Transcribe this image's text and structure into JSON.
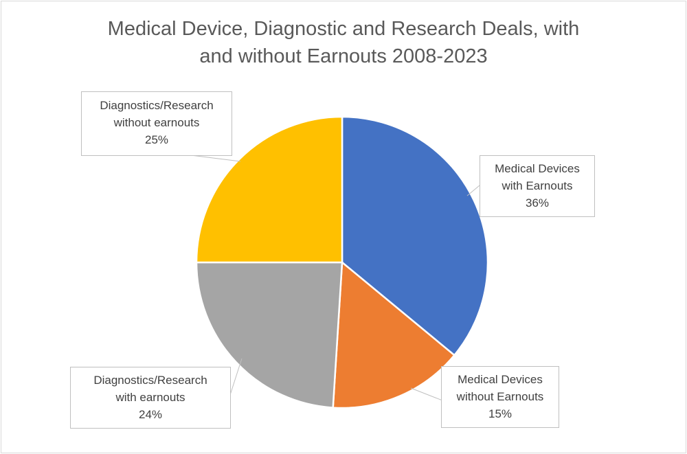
{
  "chart_data": {
    "type": "pie",
    "title_lines": [
      "Medical Device, Diagnostic and Research Deals, with",
      "and without Earnouts 2008-2023"
    ],
    "slices": [
      {
        "name_lines": [
          "Medical Devices",
          "with Earnouts"
        ],
        "value": 36,
        "value_label": "36%",
        "color": "#4472C4"
      },
      {
        "name_lines": [
          "Medical Devices",
          "without Earnouts"
        ],
        "value": 15,
        "value_label": "15%",
        "color": "#ED7D31"
      },
      {
        "name_lines": [
          "Diagnostics/Research",
          "with earnouts"
        ],
        "value": 24,
        "value_label": "24%",
        "color": "#A5A5A5"
      },
      {
        "name_lines": [
          "Diagnostics/Research",
          "without earnouts"
        ],
        "value": 25,
        "value_label": "25%",
        "color": "#FFC000"
      }
    ]
  }
}
